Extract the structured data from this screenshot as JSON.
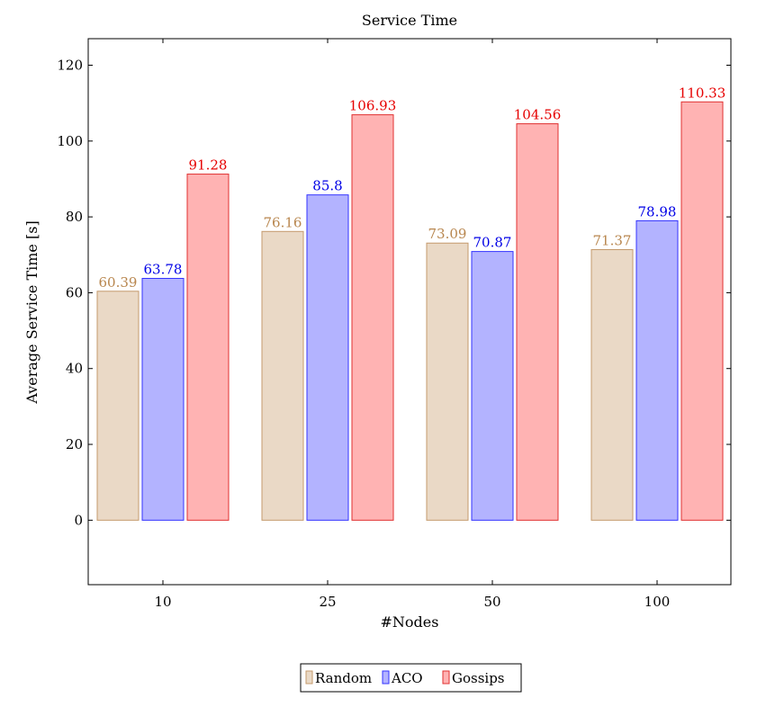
{
  "chart_data": {
    "type": "bar",
    "title": "Service Time",
    "xlabel": "#Nodes",
    "ylabel": "Average Service Time [s]",
    "categories": [
      "10",
      "25",
      "50",
      "100"
    ],
    "ylim": [
      -17,
      127
    ],
    "yticks": [
      0,
      20,
      40,
      60,
      80,
      100,
      120
    ],
    "grid": false,
    "legend_position": "bottom-center",
    "series": [
      {
        "name": "Random",
        "values": [
          60.39,
          76.16,
          73.09,
          71.37
        ],
        "fill": "#ead9c6",
        "stroke": "#c49a6c",
        "label_color": "#b8864e"
      },
      {
        "name": "ACO",
        "values": [
          63.78,
          85.8,
          70.87,
          78.98
        ],
        "fill": "#b3b3ff",
        "stroke": "#3333ff",
        "label_color": "#0000e6"
      },
      {
        "name": "Gossips",
        "values": [
          91.28,
          106.93,
          104.56,
          110.33
        ],
        "fill": "#ffb3b3",
        "stroke": "#e03030",
        "label_color": "#e60000"
      }
    ]
  }
}
